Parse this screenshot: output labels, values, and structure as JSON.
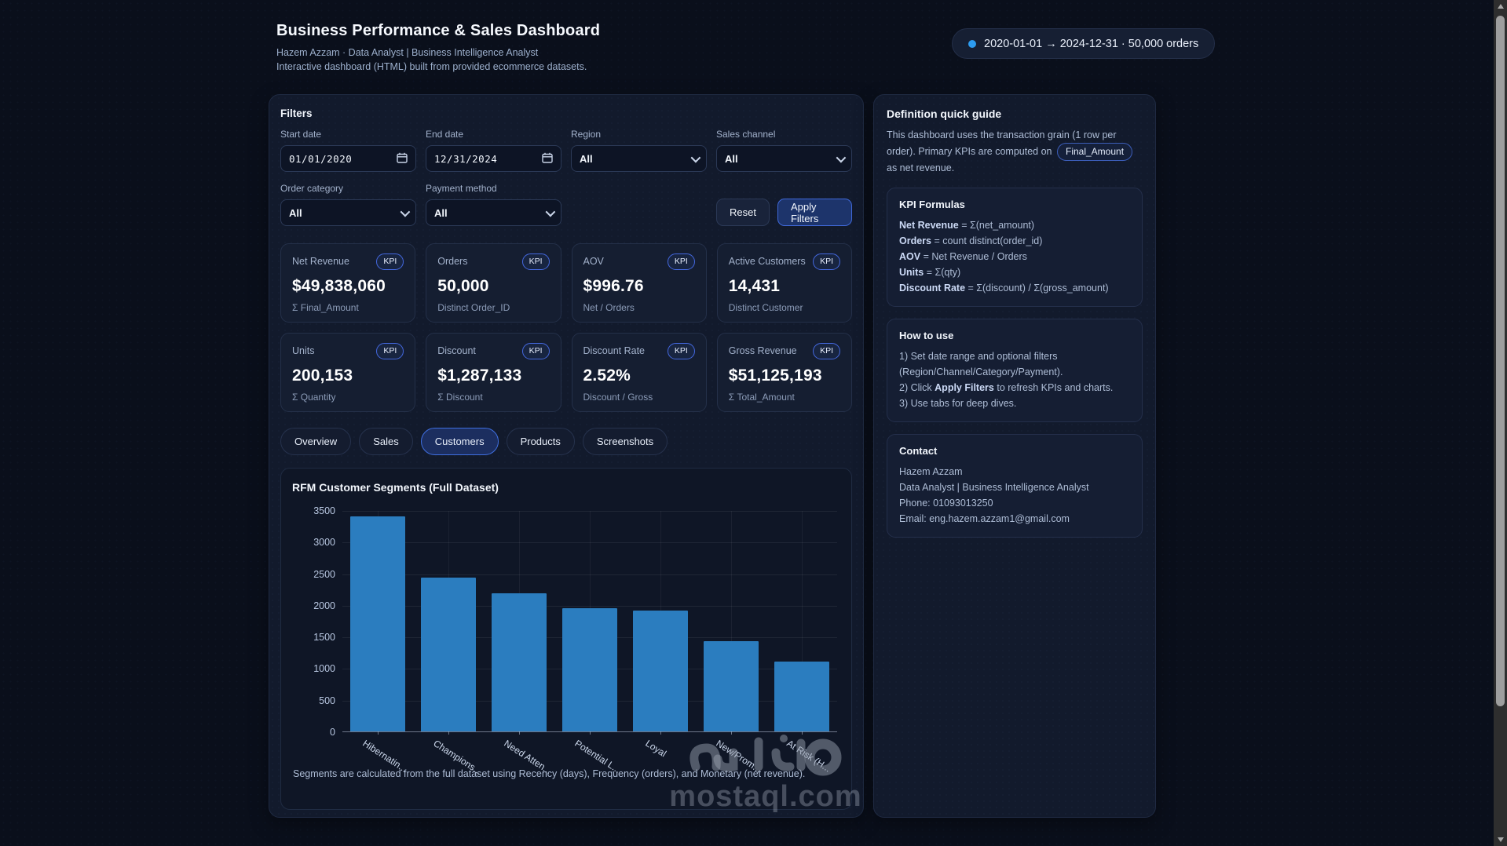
{
  "header": {
    "title": "Business Performance & Sales Dashboard",
    "subtitle": "Hazem Azzam · Data Analyst | Business Intelligence Analyst",
    "description": "Interactive dashboard (HTML) built from provided ecommerce datasets.",
    "range_pill": "2020-01-01 → 2024-12-31 · 50,000 orders"
  },
  "filters": {
    "title": "Filters",
    "fields": [
      {
        "label": "Start date",
        "value": "01/01/2020",
        "type": "date"
      },
      {
        "label": "End date",
        "value": "12/31/2024",
        "type": "date"
      },
      {
        "label": "Region",
        "value": "All",
        "type": "select"
      },
      {
        "label": "Sales channel",
        "value": "All",
        "type": "select"
      },
      {
        "label": "Order category",
        "value": "All",
        "type": "select"
      },
      {
        "label": "Payment method",
        "value": "All",
        "type": "select"
      }
    ],
    "reset_label": "Reset",
    "apply_label": "Apply Filters"
  },
  "kpi_badge_label": "KPI",
  "kpis": [
    {
      "label": "Net Revenue",
      "value": "$49,838,060",
      "sub": "Σ Final_Amount"
    },
    {
      "label": "Orders",
      "value": "50,000",
      "sub": "Distinct Order_ID"
    },
    {
      "label": "AOV",
      "value": "$996.76",
      "sub": "Net / Orders"
    },
    {
      "label": "Active Customers",
      "value": "14,431",
      "sub": "Distinct Customer"
    },
    {
      "label": "Units",
      "value": "200,153",
      "sub": "Σ Quantity"
    },
    {
      "label": "Discount",
      "value": "$1,287,133",
      "sub": "Σ Discount"
    },
    {
      "label": "Discount Rate",
      "value": "2.52%",
      "sub": "Discount / Gross"
    },
    {
      "label": "Gross Revenue",
      "value": "$51,125,193",
      "sub": "Σ Total_Amount"
    }
  ],
  "tabs": [
    {
      "label": "Overview",
      "active": false
    },
    {
      "label": "Sales",
      "active": false
    },
    {
      "label": "Customers",
      "active": true
    },
    {
      "label": "Products",
      "active": false
    },
    {
      "label": "Screenshots",
      "active": false
    }
  ],
  "chart_data": {
    "type": "bar",
    "title": "RFM Customer Segments (Full Dataset)",
    "categories": [
      "Hibernatin...",
      "Champions...",
      "Need Atten...",
      "Potential L...",
      "Loyal",
      "New/Prom...",
      "At Risk (H..."
    ],
    "values": [
      3400,
      2430,
      2180,
      1950,
      1910,
      1430,
      1100
    ],
    "ylim": [
      0,
      3500
    ],
    "ytick_step": 500,
    "bar_color": "#2b7dbf",
    "grid": true,
    "caption": "Segments are calculated from the full dataset using Recency (days), Frequency (orders), and Monetary (net revenue)."
  },
  "sidebar": {
    "definition": {
      "title": "Definition quick guide",
      "text_before": "This dashboard uses the transaction grain (1 row per order). Primary KPIs are computed on",
      "highlight": "Final_Amount",
      "text_after": "as net revenue."
    },
    "formulas": {
      "title": "KPI Formulas",
      "items": [
        {
          "term": "Net Revenue",
          "rest": " = Σ(net_amount)"
        },
        {
          "term": "Orders",
          "rest": " = count distinct(order_id)"
        },
        {
          "term": "AOV",
          "rest": " = Net Revenue / Orders"
        },
        {
          "term": "Units",
          "rest": " = Σ(qty)"
        },
        {
          "term": "Discount Rate",
          "rest": " = Σ(discount) / Σ(gross_amount)"
        }
      ]
    },
    "how_to": {
      "title": "How to use",
      "line1": "1) Set date range and optional filters (Region/Channel/Category/Payment).",
      "line2_pre": "2) Click ",
      "line2_bold": "Apply Filters",
      "line2_post": " to refresh KPIs and charts.",
      "line3": "3) Use tabs for deep dives."
    },
    "contact": {
      "title": "Contact",
      "name": "Hazem Azzam",
      "role": "Data Analyst | Business Intelligence Analyst",
      "phone": "Phone: 01093013250",
      "email": "Email: eng.hazem.azzam1@gmail.com"
    }
  },
  "watermark": {
    "logo_text": "مستقل",
    "domain": "mostaql.com"
  },
  "colors": {
    "accent": "#3b82f6",
    "bar": "#2b7dbf",
    "background": "#0a0f1b"
  }
}
